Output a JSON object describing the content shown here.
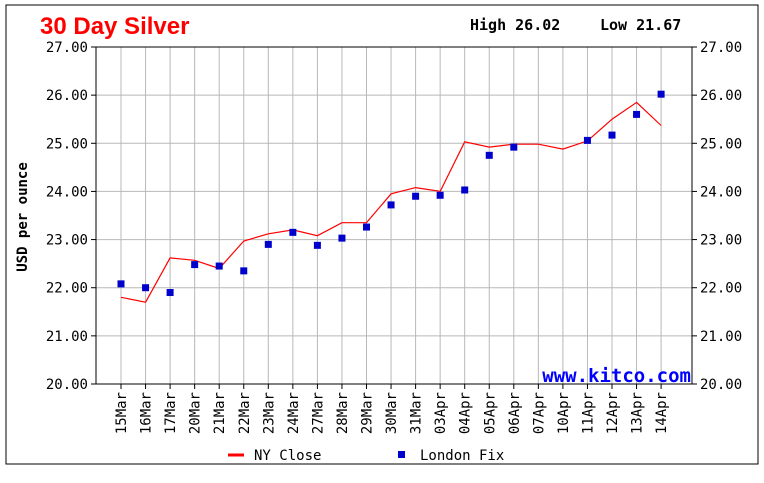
{
  "chart_data": {
    "type": "line",
    "title": "30 Day Silver",
    "stats": {
      "high_label": "High 26.02",
      "low_label": "Low 21.67"
    },
    "ylabel": "USD per ounce",
    "watermark": "www.kitco.com",
    "ylim": [
      20,
      27
    ],
    "yticks": [
      "20.00",
      "21.00",
      "22.00",
      "23.00",
      "24.00",
      "25.00",
      "26.00",
      "27.00"
    ],
    "categories": [
      "15Mar",
      "16Mar",
      "17Mar",
      "20Mar",
      "21Mar",
      "22Mar",
      "23Mar",
      "24Mar",
      "27Mar",
      "28Mar",
      "29Mar",
      "30Mar",
      "31Mar",
      "03Apr",
      "04Apr",
      "05Apr",
      "06Apr",
      "07Apr",
      "10Apr",
      "11Apr",
      "12Apr",
      "13Apr",
      "14Apr"
    ],
    "series": [
      {
        "name": "NY Close",
        "kind": "line",
        "color": "#ff0000",
        "values": [
          21.8,
          21.7,
          22.62,
          22.57,
          22.4,
          22.97,
          23.12,
          23.2,
          23.08,
          23.35,
          23.35,
          23.95,
          24.08,
          24.0,
          25.03,
          24.92,
          24.98,
          24.98,
          24.88,
          25.05,
          25.5,
          25.85,
          25.37
        ]
      },
      {
        "name": "London Fix",
        "kind": "marker",
        "color": "#0000cc",
        "values": [
          22.08,
          22.0,
          21.9,
          22.48,
          22.45,
          22.35,
          22.9,
          23.15,
          22.88,
          23.03,
          23.26,
          23.72,
          23.9,
          23.92,
          24.03,
          24.75,
          24.92,
          null,
          null,
          25.06,
          25.17,
          25.6,
          26.02
        ]
      }
    ],
    "grid": true,
    "legend_position": "bottom-center"
  }
}
